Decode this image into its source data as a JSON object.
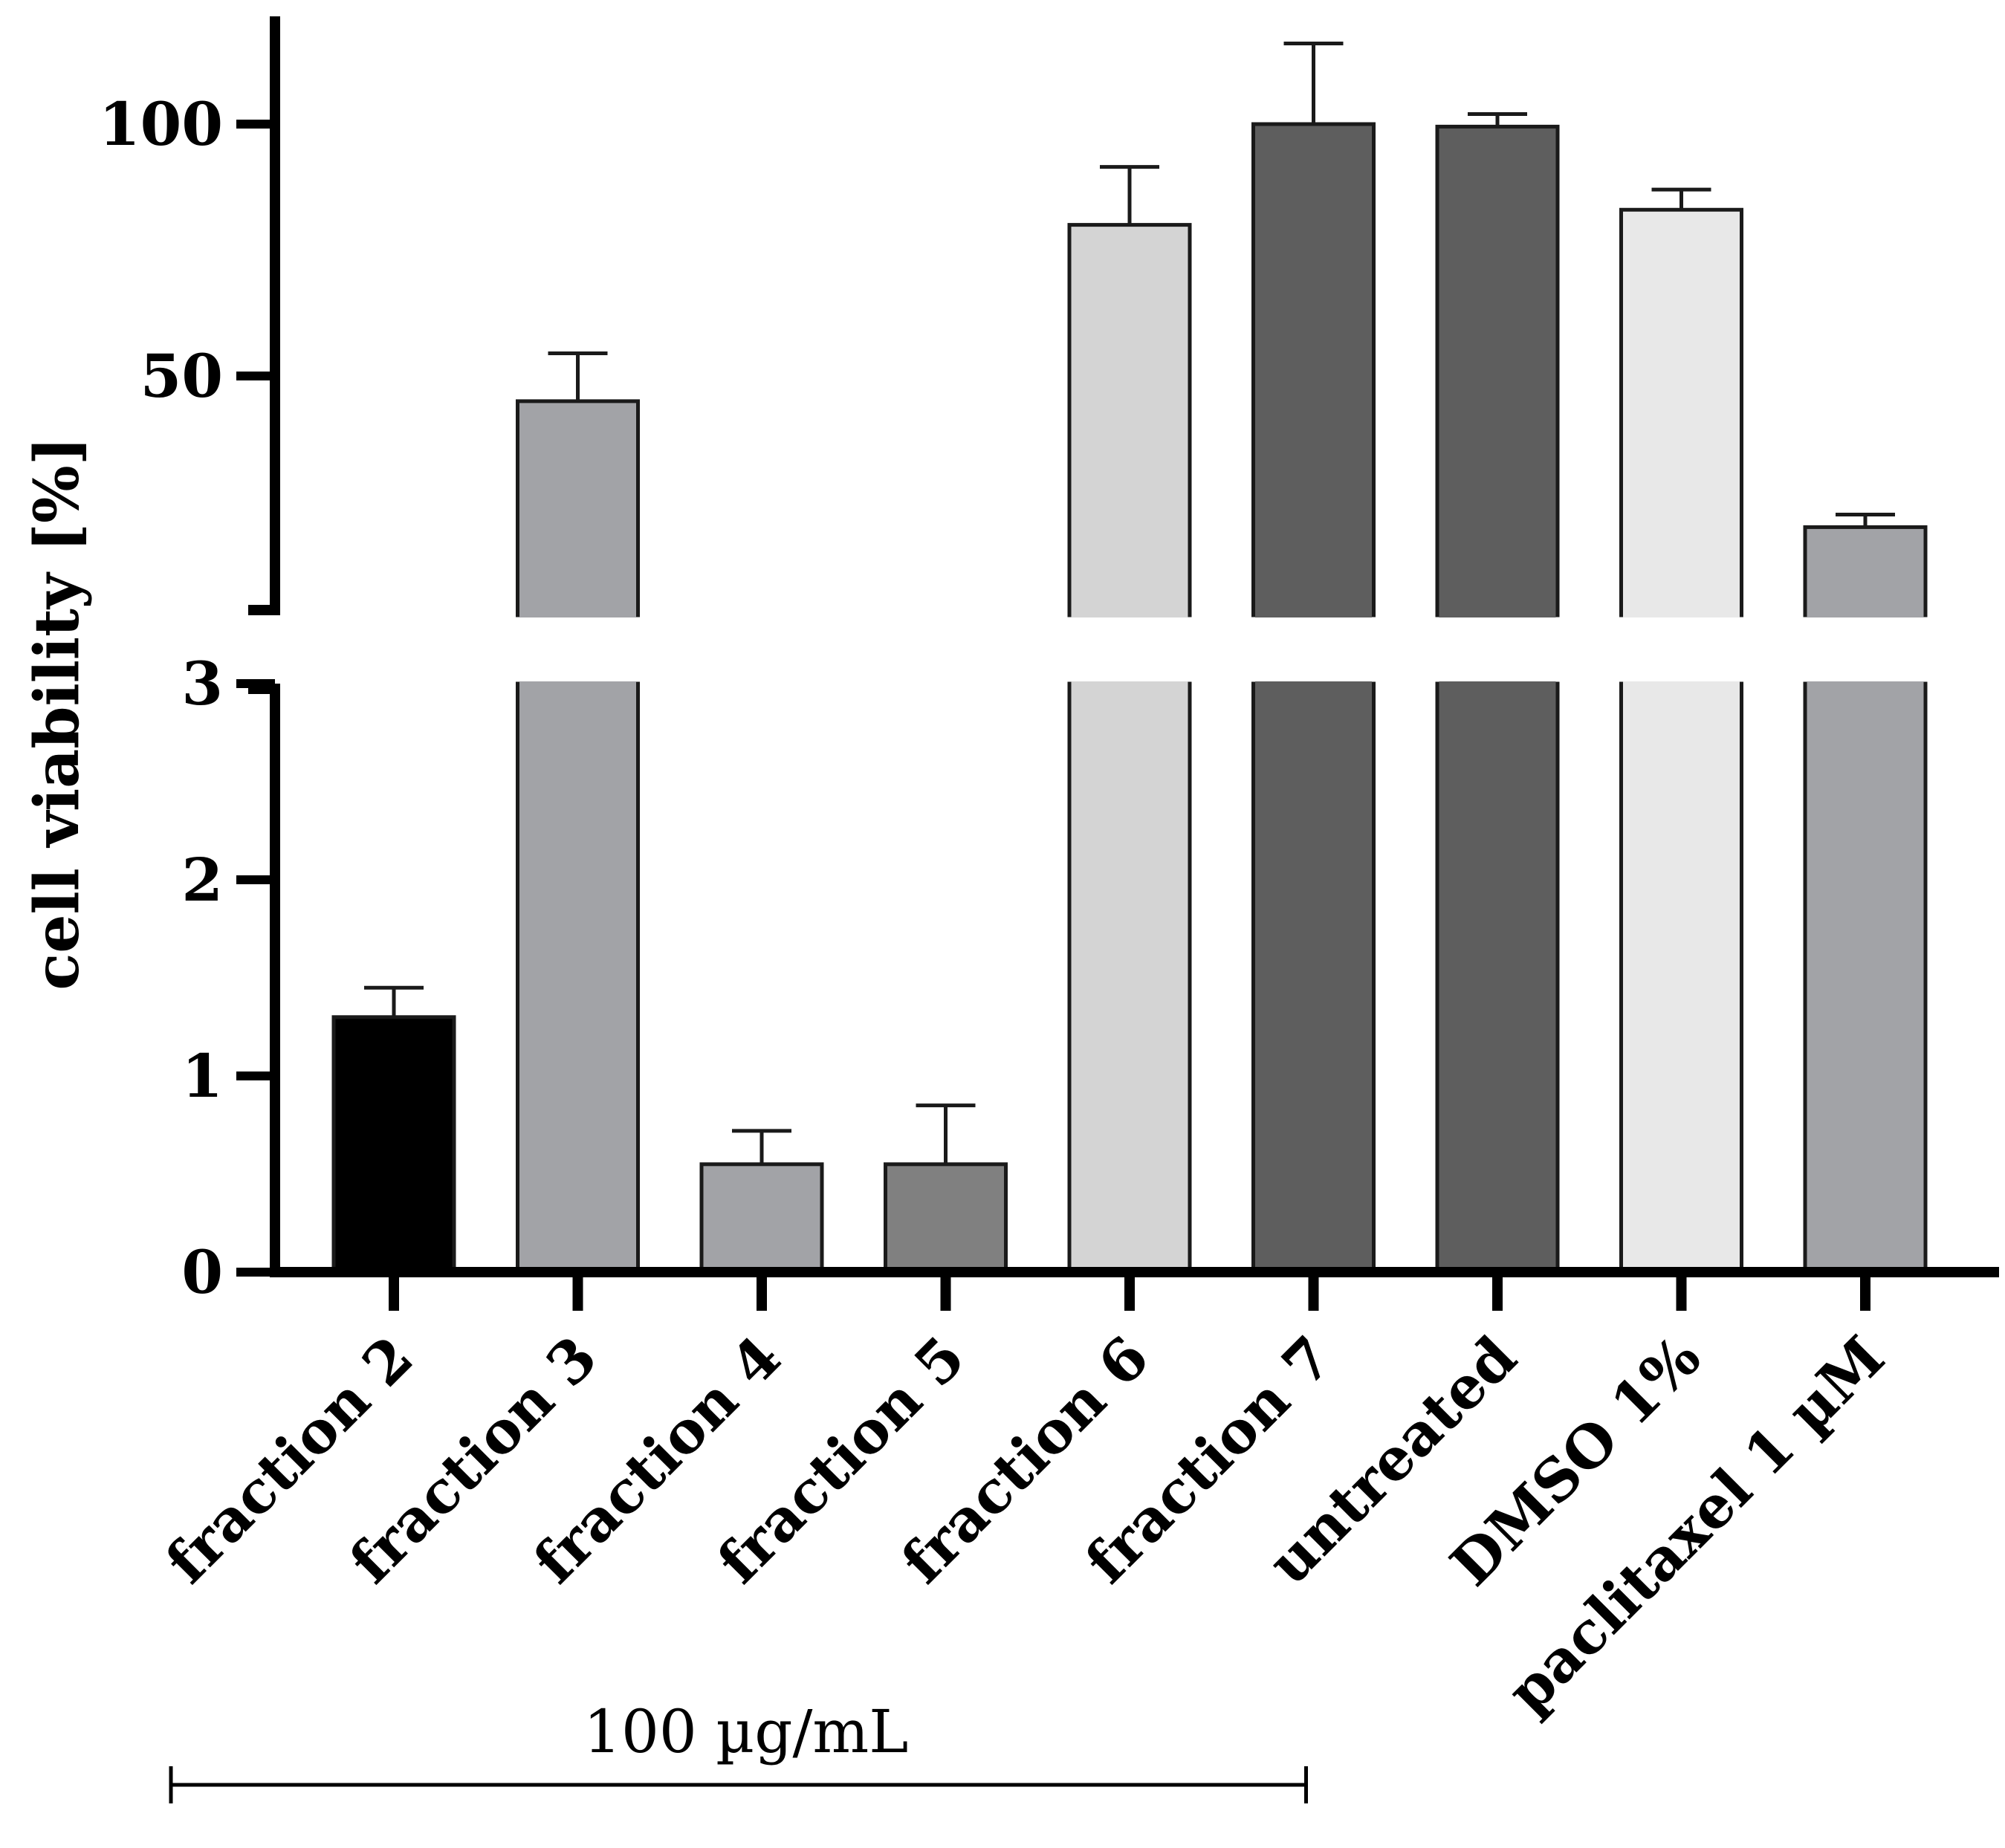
{
  "chart_data": {
    "type": "bar",
    "title": "",
    "xlabel": "",
    "ylabel": "cell viability [%]",
    "axis_break": true,
    "lower_segment": {
      "ylim": [
        0,
        3
      ],
      "ticks": [
        0,
        1,
        2,
        3
      ]
    },
    "upper_segment": {
      "ylim": [
        3,
        120
      ],
      "ticks": [
        50,
        100
      ]
    },
    "categories": [
      "fraction 2",
      "fraction 3",
      "fraction 4",
      "fraction 5",
      "fraction 6",
      "fraction 7",
      "untreated",
      "DMSO 1%",
      "paclitaxel 1 µM"
    ],
    "values": [
      1.3,
      45,
      0.55,
      0.55,
      80,
      100,
      99.5,
      83,
      20
    ],
    "errors": [
      0.15,
      9.5,
      0.17,
      0.3,
      11.5,
      16,
      2.5,
      4,
      2.5
    ],
    "colors": [
      "#000000",
      "#a2a3a7",
      "#a2a3a7",
      "#808080",
      "#d4d4d4",
      "#5e5e5e",
      "#5e5e5e",
      "#e8e8e8",
      "#a2a3a7"
    ],
    "annotation": {
      "text": "100 µg/mL",
      "spans_categories": [
        "fraction 2",
        "fraction 7"
      ]
    }
  }
}
